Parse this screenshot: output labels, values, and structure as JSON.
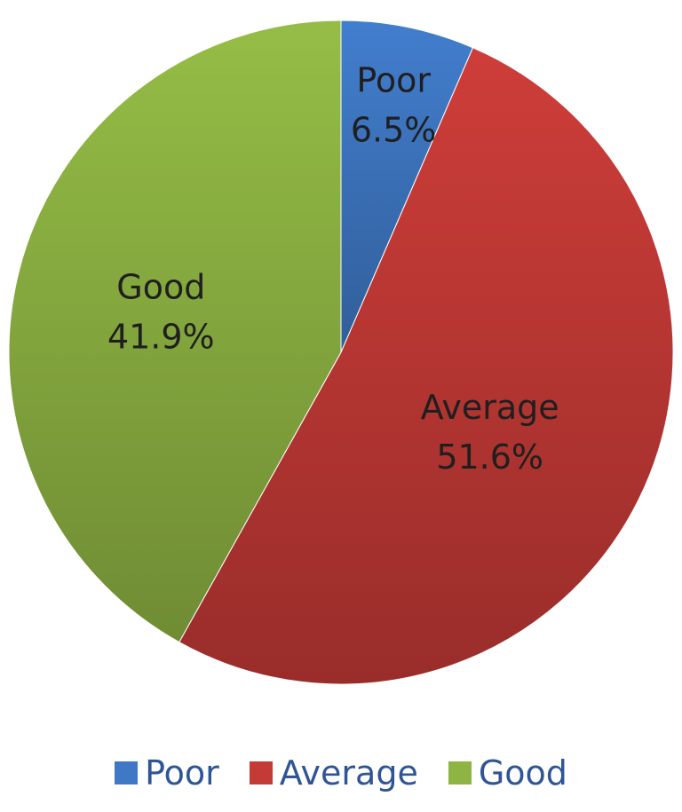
{
  "chart_data": {
    "type": "pie",
    "title": "",
    "categories": [
      "Poor",
      "Average",
      "Good"
    ],
    "values": [
      6.5,
      51.6,
      41.9
    ],
    "value_labels": [
      "6.5%",
      "51.6%",
      "41.9%"
    ],
    "colors": [
      "#3F78C4",
      "#C43A36",
      "#8EB443"
    ],
    "start_angle_deg": 0,
    "direction": "clockwise",
    "legend": {
      "placement": "bottom",
      "items": [
        "Poor",
        "Average",
        "Good"
      ]
    }
  }
}
